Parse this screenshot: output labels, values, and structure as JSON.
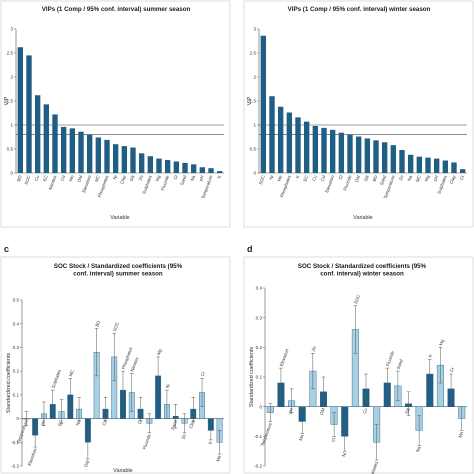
{
  "panel_labels": [
    "c",
    "d"
  ],
  "chart_data": [
    {
      "type": "bar",
      "title": "VIPs (1 Comp / 95% conf. interval) summer season",
      "xlabel": "Variable",
      "ylabel": "VIP",
      "ylim": [
        0,
        3
      ],
      "yticks": [
        0,
        0.5,
        1,
        1.5,
        2,
        2.5,
        3
      ],
      "reference_lines": [
        1,
        0.8
      ],
      "categories": [
        "BD",
        "SOC",
        "Cu",
        "EC",
        "Nitrates",
        "Cd",
        "Mn",
        "OM",
        "Elevation",
        "MC",
        "Phosphates",
        "Ni",
        "Clay",
        "Silt",
        "Zn",
        "Sulphates",
        "Mg",
        "Fluoride",
        "Cl",
        "Sand",
        "Na",
        "pH",
        "Temperature",
        "K"
      ],
      "values": [
        2.62,
        2.45,
        1.62,
        1.43,
        1.22,
        0.96,
        0.93,
        0.86,
        0.8,
        0.74,
        0.69,
        0.6,
        0.56,
        0.53,
        0.41,
        0.35,
        0.3,
        0.27,
        0.24,
        0.21,
        0.18,
        0.12,
        0.1,
        0.04
      ],
      "bar_color": "#1f5f86",
      "grid": false
    },
    {
      "type": "bar",
      "title": "VIPs (1 Comp / 95% conf. interval) winter season",
      "xlabel": "Variable",
      "ylabel": "VIP",
      "ylim": [
        0,
        3
      ],
      "yticks": [
        0,
        0.5,
        1,
        1.5,
        2,
        2.5,
        3
      ],
      "reference_lines": [
        1,
        0.8
      ],
      "categories": [
        "SOC",
        "Ni",
        "Mn",
        "Phosphates",
        "K",
        "EC",
        "Cu",
        "Cd",
        "Elevation",
        "Cl",
        "Fluoride",
        "OM",
        "Silt",
        "BD",
        "Sand",
        "Temperature",
        "Zn",
        "Na",
        "MC",
        "Mg",
        "pH",
        "Sulphates",
        "Clay",
        "Cr"
      ],
      "values": [
        2.86,
        1.6,
        1.38,
        1.26,
        1.16,
        1.07,
        0.98,
        0.94,
        0.9,
        0.84,
        0.8,
        0.76,
        0.72,
        0.68,
        0.64,
        0.58,
        0.48,
        0.38,
        0.34,
        0.32,
        0.3,
        0.26,
        0.22,
        0.08
      ],
      "bar_color": "#1f5f86",
      "grid": false
    },
    {
      "type": "bar",
      "title": "SOC Stock / Standardized coefficients (95% conf. interval) summer season",
      "xlabel": "Variable",
      "ylabel": "Standardized coefficients",
      "ylim": [
        -0.2,
        0.5
      ],
      "yticks": [
        -0.2,
        -0.1,
        0,
        0.1,
        0.2,
        0.3,
        0.4,
        0.5
      ],
      "error_bars": true,
      "categories": [
        "Temperature",
        "Elevation",
        "pH",
        "Sulphates",
        "EC",
        "MC",
        "Na",
        "OM",
        "BD",
        "Cd",
        "SOC",
        "Phosphates",
        "Nitrates",
        "Cl",
        "Fluoride",
        "Mg",
        "Ni",
        "Sand",
        "Zn",
        "Clay",
        "Cr",
        "K",
        "Mn"
      ],
      "values": [
        0.0,
        -0.07,
        0.02,
        0.06,
        0.03,
        0.1,
        0.04,
        -0.1,
        0.28,
        0.04,
        0.26,
        0.12,
        0.11,
        0.04,
        -0.02,
        0.18,
        0.06,
        0.01,
        -0.02,
        0.04,
        0.11,
        -0.05,
        -0.1
      ],
      "errors": [
        0.03,
        0.05,
        0.05,
        0.06,
        0.05,
        0.07,
        0.05,
        0.07,
        0.1,
        0.05,
        0.1,
        0.08,
        0.08,
        0.05,
        0.04,
        0.08,
        0.06,
        0.05,
        0.04,
        0.05,
        0.06,
        0.04,
        0.05
      ],
      "colors": [
        "#a8cfe3",
        "#1f5f86",
        "#a8cfe3",
        "#1f5f86",
        "#a8cfe3",
        "#1f5f86",
        "#a8cfe3",
        "#1f5f86",
        "#a8cfe3",
        "#1f5f86",
        "#a8cfe3",
        "#1f5f86",
        "#a8cfe3",
        "#1f5f86",
        "#a8cfe3",
        "#1f5f86",
        "#a8cfe3",
        "#1f5f86",
        "#a8cfe3",
        "#1f5f86",
        "#a8cfe3",
        "#1f5f86",
        "#a8cfe3"
      ],
      "label_anchor": [
        "neg",
        "neg",
        "neg",
        "pos",
        "neg",
        "pos",
        "neg",
        "neg",
        "pos",
        "neg",
        "pos",
        "pos",
        "pos",
        "neg",
        "neg",
        "pos",
        "pos",
        "neg",
        "neg",
        "neg",
        "pos",
        "neg",
        "neg"
      ],
      "grid": false
    },
    {
      "type": "bar",
      "title": "SOC Stock / Standardized coefficients (95% conf. interval) winter season",
      "xlabel": "",
      "ylabel": "Standardized coefficients",
      "ylim": [
        -0.2,
        0.4
      ],
      "yticks": [
        -0.2,
        -0.1,
        0,
        0.1,
        0.2,
        0.3,
        0.4
      ],
      "error_bars": true,
      "categories": [
        "Temperature",
        "Elevation",
        "pH",
        "Mn",
        "Zn",
        "OM",
        "Cl",
        "Ni",
        "SOC",
        "Cu",
        "Phosphates",
        "Fluoride",
        "Sand",
        "Silt",
        "Na",
        "K",
        "Mg",
        "Cr",
        "Mn"
      ],
      "values": [
        -0.02,
        0.08,
        0.02,
        -0.05,
        0.12,
        0.05,
        -0.06,
        -0.1,
        0.26,
        0.06,
        -0.12,
        0.08,
        0.07,
        0.01,
        -0.08,
        0.11,
        0.14,
        0.06,
        -0.04
      ],
      "errors": [
        0.03,
        0.05,
        0.04,
        0.04,
        0.06,
        0.05,
        0.04,
        0.05,
        0.08,
        0.05,
        0.06,
        0.05,
        0.05,
        0.04,
        0.05,
        0.05,
        0.06,
        0.05,
        0.04
      ],
      "colors": [
        "#a8cfe3",
        "#1f5f86",
        "#a8cfe3",
        "#1f5f86",
        "#a8cfe3",
        "#1f5f86",
        "#a8cfe3",
        "#1f5f86",
        "#a8cfe3",
        "#1f5f86",
        "#a8cfe3",
        "#1f5f86",
        "#a8cfe3",
        "#1f5f86",
        "#a8cfe3",
        "#1f5f86",
        "#a8cfe3",
        "#1f5f86",
        "#a8cfe3"
      ],
      "label_anchor": [
        "neg",
        "pos",
        "neg",
        "neg",
        "pos",
        "neg",
        "neg",
        "neg",
        "pos",
        "neg",
        "neg",
        "pos",
        "pos",
        "neg",
        "neg",
        "pos",
        "pos",
        "pos",
        "neg"
      ],
      "grid": false
    }
  ]
}
